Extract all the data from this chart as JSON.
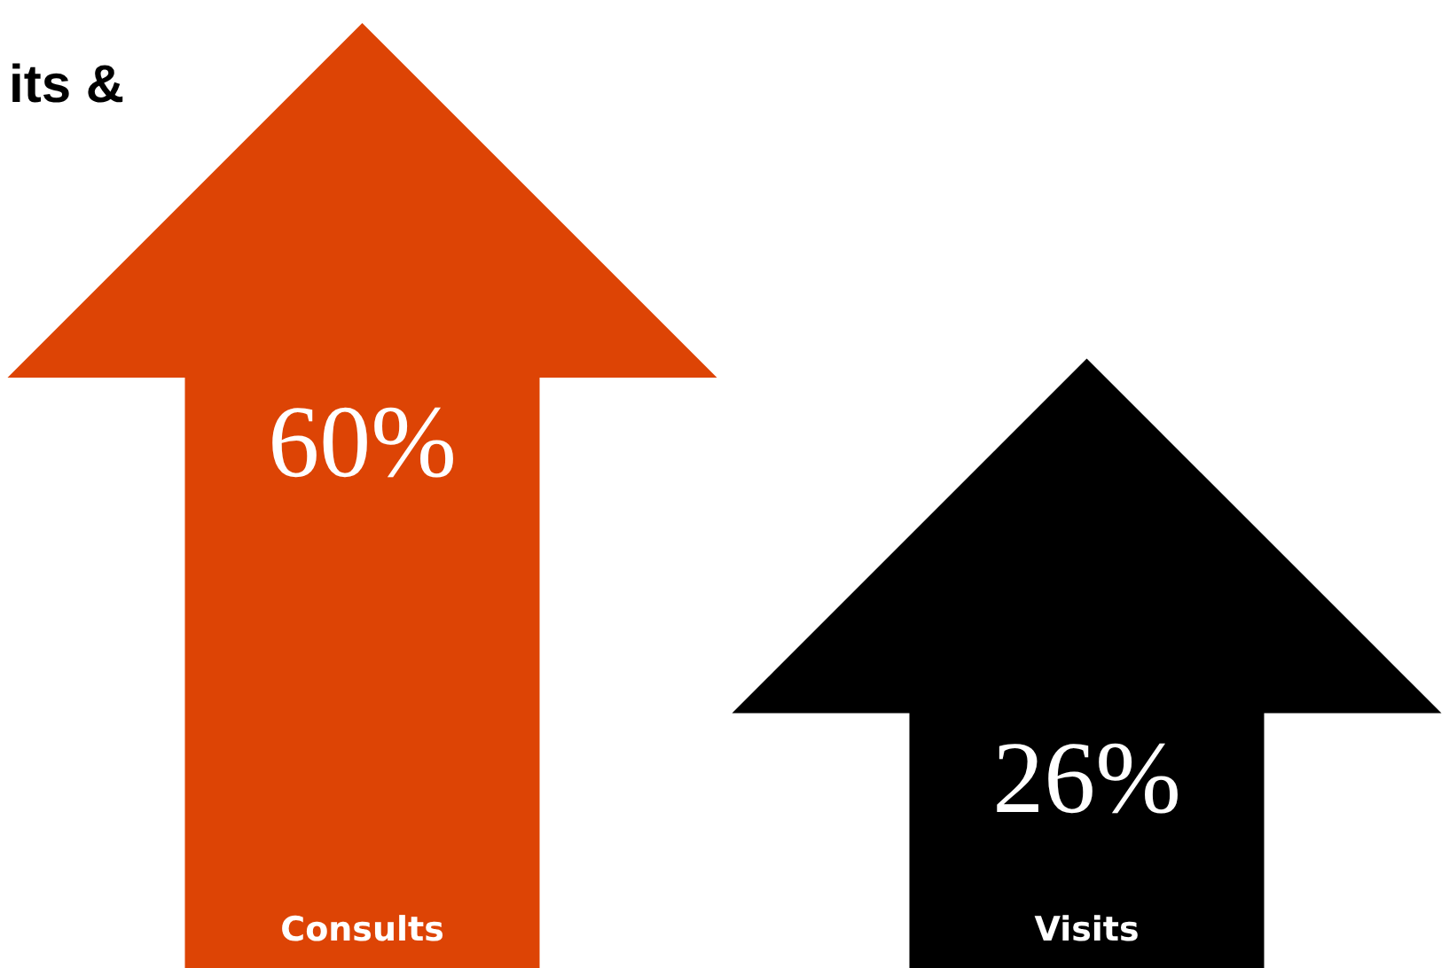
{
  "chart_data": {
    "type": "bar",
    "title": "its &",
    "categories": [
      "Consults",
      "Visits"
    ],
    "values": [
      60,
      26
    ],
    "colors": [
      "#dd4405",
      "#000000"
    ],
    "value_labels": [
      "60%",
      "26%"
    ]
  }
}
